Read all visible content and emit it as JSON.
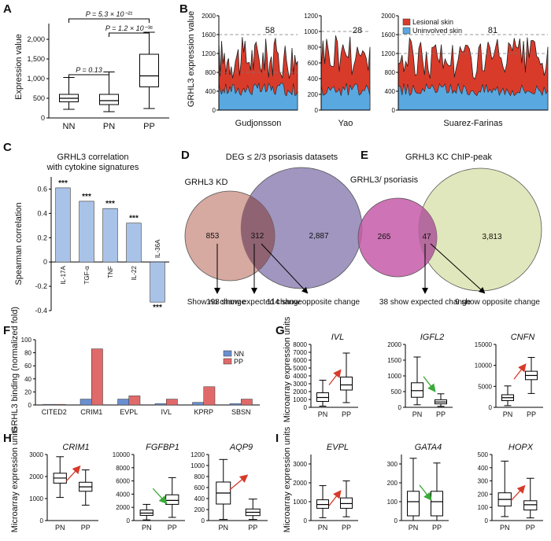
{
  "panel_letters": {
    "A": "A",
    "B": "B",
    "C": "C",
    "D": "D",
    "E": "E",
    "F": "F",
    "G": "G",
    "H": "H",
    "I": "I"
  },
  "colors": {
    "lesional": "#d93b2b",
    "uninvolved": "#5aa8e0",
    "corr_bar": "#a9c3e8",
    "nn": "#6a8fd0",
    "pp": "#e06a6a",
    "venn_grhl3": "#cf9a90",
    "venn_deg": "#8f84b4",
    "venn_e_left": "#c65aa8",
    "venn_e_right": "#dfe6b8",
    "arrow_up": "#d63a2a",
    "arrow_down": "#3aaa3a"
  },
  "chart_data": [
    {
      "id": "A",
      "type": "box",
      "ylabel": "Expression value",
      "categories": [
        "NN",
        "PN",
        "PP"
      ],
      "ylim": [
        0,
        2400
      ],
      "yticks": [
        "0",
        "500",
        "1,000",
        "1,500",
        "2,000"
      ],
      "ytick_values": [
        0,
        500,
        1000,
        1500,
        2000
      ],
      "boxes": [
        {
          "min": 220,
          "q1": 410,
          "median": 500,
          "q3": 600,
          "max": 1030
        },
        {
          "min": 160,
          "q1": 340,
          "median": 440,
          "q3": 600,
          "max": 1170
        },
        {
          "min": 240,
          "q1": 790,
          "median": 1070,
          "q3": 1620,
          "max": 2180
        }
      ],
      "pvalues": [
        {
          "label": "P = 0.13",
          "from": 0,
          "to": 1
        },
        {
          "label": "P = 1.2 × 10⁻³⁶",
          "from": 1,
          "to": 2
        },
        {
          "label": "P = 5.3 × 10⁻²¹",
          "from": 0,
          "to": 2
        }
      ]
    },
    {
      "id": "B",
      "type": "area",
      "ylabel": "GRHL3 expression value",
      "ylim": [
        0,
        2000
      ],
      "legend": [
        "Lesional skin",
        "Uninvolved skin"
      ],
      "legend_position": "top-right",
      "subpanels": [
        {
          "name": "Gudjonsson",
          "count": "58",
          "yticks": [
            "0",
            "400",
            "800",
            "1200",
            "1600",
            "2000"
          ],
          "ytick_values": [
            0,
            400,
            800,
            1200,
            1600,
            2000
          ],
          "ylim": [
            0,
            2000
          ],
          "dashed": [
            800,
            1600
          ]
        },
        {
          "name": "Yao",
          "count": "28",
          "yticks": [
            "0",
            "200",
            "400",
            "600",
            "800",
            "1000",
            "1200"
          ],
          "ytick_values": [
            0,
            200,
            400,
            600,
            800,
            1000,
            1200
          ],
          "ylim": [
            0,
            1200
          ],
          "dashed": [
            1000
          ]
        },
        {
          "name": "Suarez-Farinas",
          "count": "81",
          "yticks": [
            "0",
            "400",
            "800",
            "1200",
            "1600",
            "2000"
          ],
          "ytick_values": [
            0,
            400,
            800,
            1200,
            1600,
            2000
          ],
          "ylim": [
            0,
            2000
          ],
          "dashed": [
            1200,
            1600
          ]
        }
      ]
    },
    {
      "id": "C",
      "type": "bar",
      "title": "GRHL3 correlation",
      "subtitle": "with cytokine signatures",
      "ylabel": "Spearman correlation",
      "categories": [
        "IL-17A",
        "TGF-α",
        "TNF",
        "IL-22",
        "IL-36A"
      ],
      "values": [
        0.61,
        0.5,
        0.44,
        0.32,
        -0.33
      ],
      "labels": [
        "***",
        "***",
        "***",
        "***",
        "***"
      ],
      "ylim": [
        -0.4,
        0.7
      ],
      "yticks": [
        "-0.4",
        "-0.2",
        "0",
        "0.2",
        "0.4",
        "0.6"
      ],
      "ytick_values": [
        -0.4,
        -0.2,
        0,
        0.2,
        0.4,
        0.6
      ]
    },
    {
      "id": "D",
      "type": "venn",
      "title": "DEG ≤ 2/3 psoriasis datasets",
      "set_label": "GRHL3 KD",
      "counts": [
        "853",
        "312",
        "2,887"
      ],
      "notes": [
        "Show no change",
        "198 show expected change",
        "114 show opposite change"
      ]
    },
    {
      "id": "E",
      "type": "venn",
      "title": "GRHL3 KC ChIP-peak",
      "set_label": "GRHL3/ psoriasis",
      "counts": [
        "265",
        "47",
        "3,813"
      ],
      "notes": [
        "38 show expected change",
        "9 show opposite change"
      ]
    },
    {
      "id": "F",
      "type": "bar",
      "ylabel": "GRHL3 binding (normalized fold)",
      "categories": [
        "CITED2",
        "CRIM1",
        "EVPL",
        "IVL",
        "KPRP",
        "SBSN"
      ],
      "series": [
        {
          "name": "NN",
          "values": [
            1,
            9,
            9,
            2,
            4,
            2
          ]
        },
        {
          "name": "PP",
          "values": [
            1,
            86,
            14,
            9,
            28,
            9
          ]
        }
      ],
      "ylim": [
        0,
        100
      ],
      "yticks": [
        "0",
        "20",
        "40",
        "60",
        "80",
        "100"
      ],
      "ytick_values": [
        0,
        20,
        40,
        60,
        80,
        100
      ]
    },
    {
      "id": "G",
      "type": "box",
      "ylabel": "Microarray expression units",
      "subpanels": [
        {
          "gene": "IVL",
          "direction": "up",
          "ylim": [
            0,
            8000
          ],
          "yticks": [
            "0",
            "1000",
            "2000",
            "3000",
            "4000",
            "5000",
            "6000",
            "7000",
            "8000"
          ],
          "ytick_values": [
            0,
            1000,
            2000,
            3000,
            4000,
            5000,
            6000,
            7000,
            8000
          ],
          "categories": [
            "PN",
            "PP"
          ],
          "boxes": [
            {
              "min": 150,
              "q1": 750,
              "median": 1250,
              "q3": 1850,
              "max": 3450
            },
            {
              "min": 600,
              "q1": 2200,
              "median": 2850,
              "q3": 3850,
              "max": 6900
            }
          ]
        },
        {
          "gene": "IGFL2",
          "direction": "down",
          "ylim": [
            0,
            2000
          ],
          "yticks": [
            "0",
            "500",
            "1000",
            "1500",
            "2000"
          ],
          "ytick_values": [
            0,
            500,
            1000,
            1500,
            2000
          ],
          "categories": [
            "PN",
            "PP"
          ],
          "boxes": [
            {
              "min": 80,
              "q1": 320,
              "median": 530,
              "q3": 780,
              "max": 1600
            },
            {
              "min": 30,
              "q1": 110,
              "median": 170,
              "q3": 240,
              "max": 430
            }
          ]
        },
        {
          "gene": "CNFN",
          "direction": "up",
          "ylim": [
            0,
            15000
          ],
          "yticks": [
            "0",
            "5000",
            "10000",
            "15000"
          ],
          "ytick_values": [
            0,
            5000,
            10000,
            15000
          ],
          "categories": [
            "PN",
            "PP"
          ],
          "boxes": [
            {
              "min": 400,
              "q1": 1600,
              "median": 2300,
              "q3": 3000,
              "max": 5100
            },
            {
              "min": 3300,
              "q1": 6600,
              "median": 7600,
              "q3": 8600,
              "max": 11900
            }
          ]
        }
      ]
    },
    {
      "id": "H",
      "type": "box",
      "ylabel": "Microarray expression units",
      "subpanels": [
        {
          "gene": "CRIM1",
          "direction": "up",
          "ylim": [
            0,
            3000
          ],
          "yticks": [
            "0",
            "1000",
            "2000",
            "3000"
          ],
          "ytick_values": [
            0,
            1000,
            2000,
            3000
          ],
          "categories": [
            "PN",
            "PP"
          ],
          "boxes": [
            {
              "min": 1050,
              "q1": 1700,
              "median": 1930,
              "q3": 2150,
              "max": 2900
            },
            {
              "min": 700,
              "q1": 1330,
              "median": 1530,
              "q3": 1740,
              "max": 2300
            }
          ]
        },
        {
          "gene": "FGFBP1",
          "direction": "down",
          "ylim": [
            0,
            10000
          ],
          "yticks": [
            "0",
            "2000",
            "4000",
            "6000",
            "8000",
            "10000"
          ],
          "ytick_values": [
            0,
            2000,
            4000,
            6000,
            8000,
            10000
          ],
          "categories": [
            "PN",
            "PP"
          ],
          "boxes": [
            {
              "min": 100,
              "q1": 780,
              "median": 1130,
              "q3": 1600,
              "max": 2450
            },
            {
              "min": 480,
              "q1": 2450,
              "median": 3050,
              "q3": 3900,
              "max": 6500
            }
          ]
        },
        {
          "gene": "AQP9",
          "direction": "up",
          "ylim": [
            0,
            1200
          ],
          "yticks": [
            "0",
            "200",
            "400",
            "600",
            "800",
            "1000",
            "1200"
          ],
          "ytick_values": [
            0,
            200,
            400,
            600,
            800,
            1000,
            1200
          ],
          "categories": [
            "PN",
            "PP"
          ],
          "boxes": [
            {
              "min": 20,
              "q1": 300,
              "median": 500,
              "q3": 700,
              "max": 1110
            },
            {
              "min": 20,
              "q1": 90,
              "median": 150,
              "q3": 210,
              "max": 390
            }
          ]
        }
      ]
    },
    {
      "id": "I",
      "type": "box",
      "ylabel": "Microarray expression units",
      "subpanels": [
        {
          "gene": "EVPL",
          "direction": "up",
          "ylim": [
            0,
            3500
          ],
          "yticks": [
            "0",
            "1000",
            "2000",
            "3000"
          ],
          "ytick_values": [
            0,
            1000,
            2000,
            3000
          ],
          "categories": [
            "PN",
            "PP"
          ],
          "boxes": [
            {
              "min": 150,
              "q1": 650,
              "median": 850,
              "q3": 1100,
              "max": 1850
            },
            {
              "min": 200,
              "q1": 650,
              "median": 900,
              "q3": 1200,
              "max": 2100
            }
          ]
        },
        {
          "gene": "GATA4",
          "direction": "down",
          "ylim": [
            0,
            350
          ],
          "yticks": [
            "0",
            "100",
            "200",
            "300"
          ],
          "ytick_values": [
            0,
            100,
            200,
            300
          ],
          "categories": [
            "PN",
            "PP"
          ],
          "boxes": [
            {
              "min": 0,
              "q1": 25,
              "median": 100,
              "q3": 155,
              "max": 330
            },
            {
              "min": 0,
              "q1": 25,
              "median": 100,
              "q3": 155,
              "max": 305
            }
          ]
        },
        {
          "gene": "HOPX",
          "direction": "up",
          "ylim": [
            0,
            500
          ],
          "yticks": [
            "0",
            "100",
            "200",
            "300",
            "400",
            "500"
          ],
          "ytick_values": [
            0,
            100,
            200,
            300,
            400,
            500
          ],
          "categories": [
            "PN",
            "PP"
          ],
          "boxes": [
            {
              "min": 30,
              "q1": 110,
              "median": 160,
              "q3": 210,
              "max": 450
            },
            {
              "min": 20,
              "q1": 80,
              "median": 120,
              "q3": 150,
              "max": 320
            }
          ]
        }
      ]
    }
  ]
}
